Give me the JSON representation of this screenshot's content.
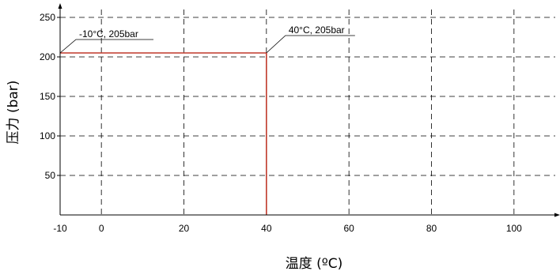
{
  "chart_data": {
    "type": "line",
    "title": "",
    "xlabel": "温度 (ºC)",
    "ylabel": "压力 (bar)",
    "xlim": [
      -10,
      110
    ],
    "ylim": [
      0,
      260
    ],
    "x_ticks": [
      -10,
      0,
      20,
      40,
      60,
      80,
      100
    ],
    "x_gridlines": [
      0,
      20,
      40,
      60,
      80,
      100
    ],
    "y_ticks": [
      50,
      100,
      150,
      200,
      250
    ],
    "grid": true,
    "series": [
      {
        "color": "#c0392b",
        "points": [
          [
            -10,
            205
          ],
          [
            40,
            205
          ],
          [
            40,
            0
          ]
        ]
      }
    ],
    "annotations": [
      {
        "text": "-10°C, 205bar",
        "x": -10,
        "y": 205
      },
      {
        "text": "40°C, 205bar",
        "x": 40,
        "y": 205
      }
    ]
  }
}
